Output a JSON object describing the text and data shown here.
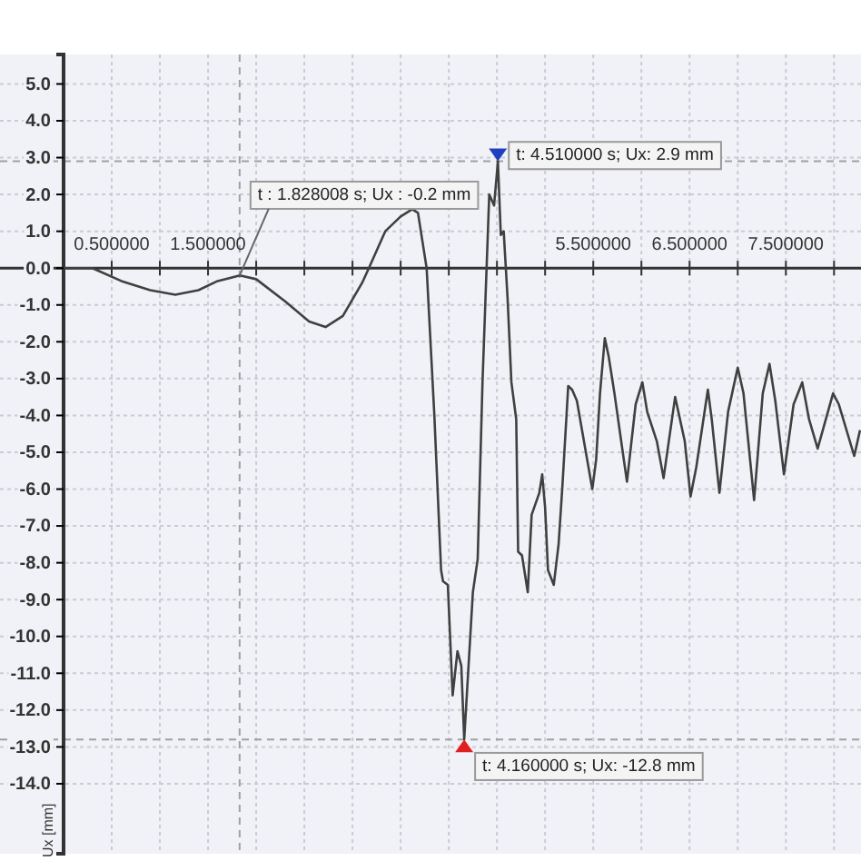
{
  "chart_data": {
    "type": "line",
    "ylabel": "Ux [mm]",
    "xlim": [
      -0.66,
      8.28
    ],
    "ylim": [
      -15.9,
      5.8
    ],
    "xticks": [
      {
        "value": 0.5,
        "label": "0.500000"
      },
      {
        "value": 1,
        "label": null
      },
      {
        "value": 1.5,
        "label": "1.500000"
      },
      {
        "value": 2,
        "label": null
      },
      {
        "value": 2.5,
        "label": null
      },
      {
        "value": 3,
        "label": null
      },
      {
        "value": 3.5,
        "label": null
      },
      {
        "value": 4,
        "label": null
      },
      {
        "value": 4.5,
        "label": null
      },
      {
        "value": 5,
        "label": null
      },
      {
        "value": 5.5,
        "label": "5.500000"
      },
      {
        "value": 6,
        "label": null
      },
      {
        "value": 6.5,
        "label": "6.500000"
      },
      {
        "value": 7,
        "label": null
      },
      {
        "value": 7.5,
        "label": "7.500000"
      },
      {
        "value": 8,
        "label": null
      }
    ],
    "yticks": [
      {
        "value": -14,
        "label": "-14.0"
      },
      {
        "value": -13,
        "label": "-13.0"
      },
      {
        "value": -12,
        "label": "-12.0"
      },
      {
        "value": -11,
        "label": "-11.0"
      },
      {
        "value": -10,
        "label": "-10.0"
      },
      {
        "value": -9,
        "label": "-9.0"
      },
      {
        "value": -8,
        "label": "-8.0"
      },
      {
        "value": -7,
        "label": "-7.0"
      },
      {
        "value": -6,
        "label": "-6.0"
      },
      {
        "value": -5,
        "label": "-5.0"
      },
      {
        "value": -4,
        "label": "-4.0"
      },
      {
        "value": -3,
        "label": "-3.0"
      },
      {
        "value": -2,
        "label": "-2.0"
      },
      {
        "value": -1,
        "label": "-1.0"
      },
      {
        "value": 0,
        "label": "0.0"
      },
      {
        "value": 1,
        "label": "1.0"
      },
      {
        "value": 2,
        "label": "2.0"
      },
      {
        "value": 3,
        "label": "3.0"
      },
      {
        "value": 4,
        "label": "4.0"
      },
      {
        "value": 5,
        "label": "5.0"
      }
    ],
    "grid": true,
    "marker": "none",
    "line_style": "solid",
    "x": [
      0,
      0.3,
      0.6,
      0.9,
      1.16,
      1.4,
      1.6,
      1.83,
      2.0,
      2.3,
      2.55,
      2.72,
      2.9,
      3.1,
      3.17,
      3.34,
      3.5,
      3.62,
      3.68,
      3.77,
      3.85,
      3.92,
      3.94,
      3.99,
      4.04,
      4.09,
      4.13,
      4.16,
      4.25,
      4.3,
      4.35,
      4.38,
      4.42,
      4.47,
      4.51,
      4.54,
      4.57,
      4.61,
      4.65,
      4.7,
      4.72,
      4.76,
      4.82,
      4.86,
      4.94,
      4.97,
      5.0,
      5.03,
      5.09,
      5.14,
      5.18,
      5.24,
      5.28,
      5.33,
      5.49,
      5.53,
      5.57,
      5.62,
      5.66,
      5.72,
      5.79,
      5.85,
      5.94,
      6.01,
      6.06,
      6.16,
      6.23,
      6.35,
      6.45,
      6.51,
      6.57,
      6.69,
      6.73,
      6.81,
      6.9,
      7.0,
      7.06,
      7.17,
      7.26,
      7.33,
      7.39,
      7.48,
      7.58,
      7.67,
      7.74,
      7.83,
      7.99,
      8.05,
      8.21,
      8.27
    ],
    "series": [
      {
        "color": "#404040",
        "values": [
          0,
          0,
          -0.35,
          -0.6,
          -0.72,
          -0.6,
          -0.35,
          -0.2,
          -0.3,
          -0.9,
          -1.45,
          -1.6,
          -1.3,
          -0.4,
          0,
          1.0,
          1.4,
          1.6,
          1.5,
          0,
          -4,
          -8.2,
          -8.5,
          -8.6,
          -11.6,
          -10.4,
          -10.8,
          -12.8,
          -8.8,
          -7.9,
          -3.1,
          -0.9,
          2.0,
          1.7,
          2.9,
          0.9,
          1.0,
          -0.8,
          -3.1,
          -4.1,
          -7.7,
          -7.8,
          -8.8,
          -6.7,
          -6.1,
          -5.6,
          -6.5,
          -8.2,
          -8.6,
          -7.5,
          -5.9,
          -3.2,
          -3.3,
          -3.6,
          -6.0,
          -5.2,
          -3.4,
          -1.9,
          -2.4,
          -3.4,
          -4.7,
          -5.8,
          -3.7,
          -3.1,
          -3.9,
          -4.7,
          -5.7,
          -3.5,
          -4.7,
          -6.2,
          -5.4,
          -3.3,
          -4.1,
          -6.1,
          -3.9,
          -2.7,
          -3.4,
          -6.3,
          -3.4,
          -2.6,
          -3.6,
          -5.6,
          -3.7,
          -3.1,
          -4.1,
          -4.9,
          -3.4,
          -3.7,
          -5.1,
          -4.4
        ]
      }
    ],
    "ref_lines": [
      {
        "axis": "x",
        "value": 1.828,
        "color": "#a0a0a0",
        "line_style": "dashed"
      },
      {
        "axis": "y",
        "value": 2.9,
        "color": "#a0a0a0",
        "line_style": "dashed"
      },
      {
        "axis": "y",
        "value": -12.8,
        "color": "#a0a0a0",
        "line_style": "dashed"
      }
    ],
    "annotations": [
      {
        "text": "t : 1.828008 s; Ux : -0.2 mm",
        "x": 1.828,
        "y": -0.2
      },
      {
        "text": "t: 4.510000 s; Ux: 2.9 mm",
        "x": 4.51,
        "y": 2.9
      },
      {
        "text": "t: 4.160000 s; Ux: -12.8 mm",
        "x": 4.16,
        "y": -12.8
      }
    ]
  }
}
